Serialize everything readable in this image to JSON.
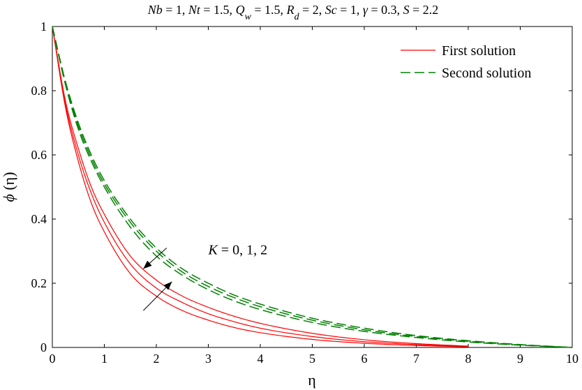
{
  "chart_data": {
    "type": "line",
    "title": {
      "parts": [
        {
          "t": "Nb",
          "i": true
        },
        {
          "t": " = 1, "
        },
        {
          "t": "Nt",
          "i": true
        },
        {
          "t": " = 1.5, "
        },
        {
          "t": "Q",
          "i": true
        },
        {
          "t": "w",
          "i": true,
          "sub": true
        },
        {
          "t": " = 1.5, "
        },
        {
          "t": "R",
          "i": true
        },
        {
          "t": "d",
          "i": true,
          "sub": true
        },
        {
          "t": " = 2, "
        },
        {
          "t": "Sc",
          "i": true
        },
        {
          "t": " = 1, "
        },
        {
          "t": "γ",
          "i": true
        },
        {
          "t": " = 0.3, "
        },
        {
          "t": "S",
          "i": true
        },
        {
          "t": " = 2.2"
        }
      ]
    },
    "xlabel": "η",
    "ylabel": {
      "italic": "ϕ",
      "rest": " (η)"
    },
    "xlim": [
      0,
      10
    ],
    "ylim": [
      0,
      1
    ],
    "xticks": [
      0,
      1,
      2,
      3,
      4,
      5,
      6,
      7,
      8,
      9,
      10
    ],
    "yticks": [
      0,
      0.2,
      0.4,
      0.6,
      0.8,
      1
    ],
    "grid": false,
    "legend": {
      "placement": "top-right",
      "entries": [
        {
          "label": "First solution",
          "color": "#ff0000",
          "style": "solid"
        },
        {
          "label": "Second solution",
          "color": "#008000",
          "style": "dashed"
        }
      ]
    },
    "annotation": {
      "parts": [
        {
          "t": "K",
          "i": true
        },
        {
          "t": " = 0, 1,  2"
        }
      ],
      "x": 3.0,
      "y": 0.29,
      "arrows": [
        {
          "from": [
            2.2,
            0.31
          ],
          "to": [
            1.75,
            0.245
          ]
        },
        {
          "from": [
            1.75,
            0.115
          ],
          "to": [
            2.3,
            0.205
          ]
        }
      ]
    },
    "series": [
      {
        "group": "First solution",
        "color": "#ff0000",
        "style": "solid",
        "x": [
          0,
          0.25,
          0.5,
          0.75,
          1,
          1.5,
          2,
          2.5,
          3,
          3.5,
          4,
          5,
          6,
          7,
          8
        ],
        "y": [
          1,
          0.75,
          0.58,
          0.45,
          0.36,
          0.23,
          0.16,
          0.115,
          0.085,
          0.062,
          0.046,
          0.025,
          0.013,
          0.006,
          0.002
        ]
      },
      {
        "group": "First solution",
        "color": "#ff0000",
        "style": "solid",
        "x": [
          0,
          0.25,
          0.5,
          0.75,
          1,
          1.5,
          2,
          2.5,
          3,
          3.5,
          4,
          5,
          6,
          7,
          8
        ],
        "y": [
          1,
          0.76,
          0.6,
          0.48,
          0.39,
          0.26,
          0.185,
          0.14,
          0.105,
          0.08,
          0.06,
          0.034,
          0.018,
          0.009,
          0.003
        ]
      },
      {
        "group": "First solution",
        "color": "#ff0000",
        "style": "solid",
        "x": [
          0,
          0.25,
          0.5,
          0.75,
          1,
          1.5,
          2,
          2.5,
          3,
          3.5,
          4,
          5,
          6,
          7,
          8
        ],
        "y": [
          1,
          0.77,
          0.62,
          0.5,
          0.415,
          0.285,
          0.21,
          0.16,
          0.125,
          0.097,
          0.075,
          0.044,
          0.024,
          0.012,
          0.004
        ]
      },
      {
        "group": "Second solution",
        "color": "#008000",
        "style": "dashed",
        "x": [
          0,
          0.25,
          0.5,
          0.75,
          1,
          1.5,
          2,
          2.5,
          3,
          3.5,
          4,
          5,
          6,
          7,
          8,
          9,
          10
        ],
        "y": [
          1,
          0.82,
          0.68,
          0.58,
          0.5,
          0.375,
          0.285,
          0.225,
          0.18,
          0.145,
          0.118,
          0.078,
          0.05,
          0.031,
          0.017,
          0.007,
          0
        ]
      },
      {
        "group": "Second solution",
        "color": "#008000",
        "style": "dashed",
        "x": [
          0,
          0.25,
          0.5,
          0.75,
          1,
          1.5,
          2,
          2.5,
          3,
          3.5,
          4,
          5,
          6,
          7,
          8,
          9,
          10
        ],
        "y": [
          1,
          0.825,
          0.69,
          0.59,
          0.51,
          0.39,
          0.3,
          0.235,
          0.19,
          0.155,
          0.127,
          0.085,
          0.055,
          0.034,
          0.019,
          0.008,
          0
        ]
      },
      {
        "group": "Second solution",
        "color": "#008000",
        "style": "dashed",
        "x": [
          0,
          0.25,
          0.5,
          0.75,
          1,
          1.5,
          2,
          2.5,
          3,
          3.5,
          4,
          5,
          6,
          7,
          8,
          9,
          10
        ],
        "y": [
          1,
          0.83,
          0.7,
          0.6,
          0.52,
          0.4,
          0.31,
          0.245,
          0.2,
          0.163,
          0.135,
          0.091,
          0.06,
          0.037,
          0.021,
          0.009,
          0
        ]
      }
    ]
  }
}
